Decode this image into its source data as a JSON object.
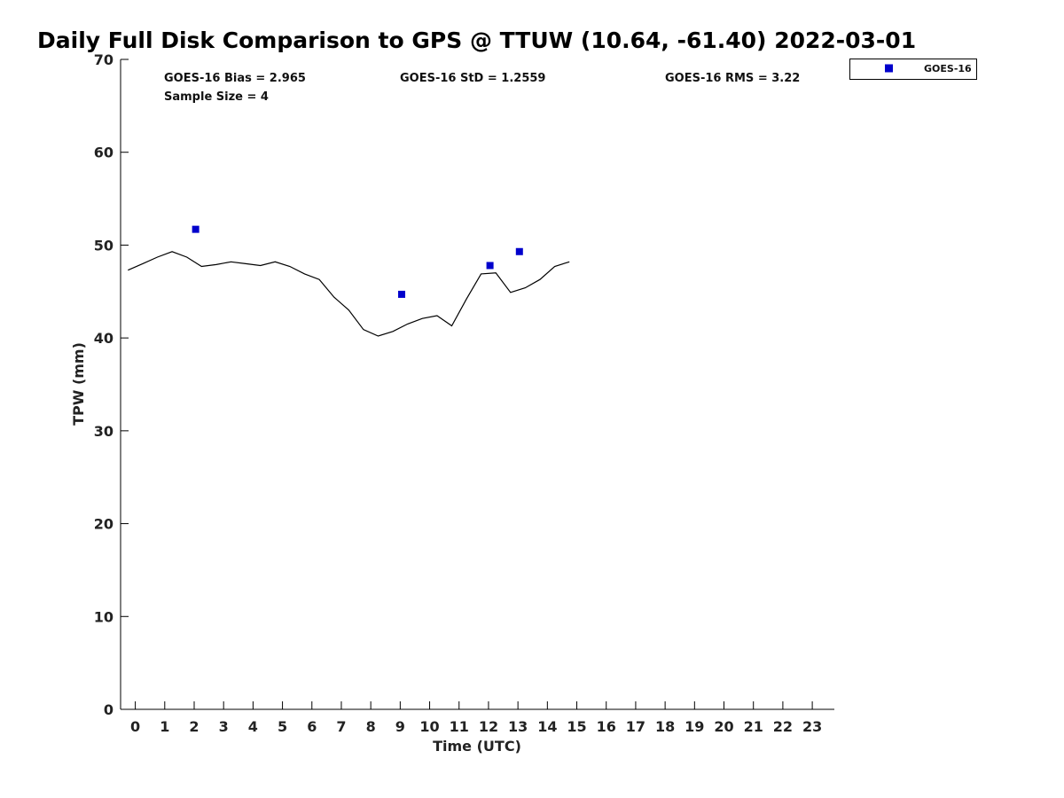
{
  "chart_data": {
    "type": "line",
    "title": "Daily Full Disk Comparison to GPS @ TTUW (10.64, -61.40) 2022-03-01",
    "xlabel": "Time (UTC)",
    "ylabel": "TPW (mm)",
    "xlim": [
      -0.5,
      23.75
    ],
    "ylim": [
      0,
      70
    ],
    "x_ticks": [
      0,
      1,
      2,
      3,
      4,
      5,
      6,
      7,
      8,
      9,
      10,
      11,
      12,
      13,
      14,
      15,
      16,
      17,
      18,
      19,
      20,
      21,
      22,
      23
    ],
    "y_ticks": [
      0,
      10,
      20,
      30,
      40,
      50,
      60,
      70
    ],
    "grid": false,
    "legend_position": "top-right",
    "stats": [
      "GOES-16 Bias = 2.965",
      "GOES-16 StD = 1.2559",
      "GOES-16 RMS = 3.22",
      "Sample Size = 4"
    ],
    "series": [
      {
        "kind": "line",
        "color": "#000000",
        "x": [
          -0.25,
          0.25,
          0.75,
          1.25,
          1.75,
          2.25,
          2.75,
          3.25,
          3.75,
          4.25,
          4.75,
          5.25,
          5.75,
          6.25,
          6.75,
          7.25,
          7.75,
          8.25,
          8.75,
          9.25,
          9.75,
          10.25,
          10.75,
          11.25,
          11.75,
          12.25,
          12.75,
          13.25,
          13.75,
          14.25,
          14.75
        ],
        "y": [
          47.3,
          48.0,
          48.7,
          49.3,
          48.7,
          47.7,
          47.9,
          48.2,
          48.0,
          47.8,
          48.2,
          47.7,
          46.9,
          46.3,
          44.4,
          43.0,
          40.9,
          40.2,
          40.7,
          41.5,
          42.1,
          42.4,
          41.3,
          44.2,
          46.9,
          47.0,
          44.9,
          45.4,
          46.3,
          47.7,
          48.2
        ]
      },
      {
        "kind": "scatter",
        "name": "GOES-16",
        "color": "#0000cc",
        "x": [
          2.05,
          9.05,
          12.05,
          13.05
        ],
        "y": [
          51.7,
          44.7,
          47.8,
          49.3
        ]
      }
    ]
  }
}
